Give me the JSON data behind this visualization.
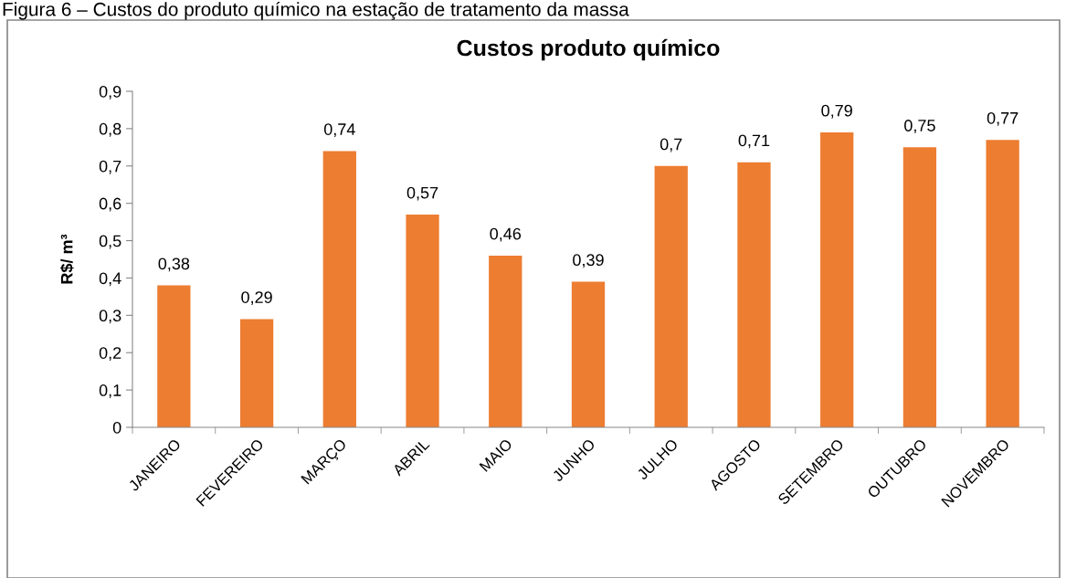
{
  "chart_data": {
    "type": "bar",
    "title": "Custos produto químico",
    "ylabel": "R$/ m³",
    "annotations": [
      "Figura 6 – Custos do produto químico na estação de tratamento da massa"
    ],
    "categories": [
      "JANEIRO",
      "FEVEREIRO",
      "MARÇO",
      "ABRIL",
      "MAIO",
      "JUNHO",
      "JULHO",
      "AGOSTO",
      "SETEMBRO",
      "OUTUBRO",
      "NOVEMBRO"
    ],
    "values": [
      0.38,
      0.29,
      0.74,
      0.57,
      0.46,
      0.39,
      0.7,
      0.71,
      0.79,
      0.75,
      0.77
    ],
    "value_labels": [
      "0,38",
      "0,29",
      "0,74",
      "0,57",
      "0,46",
      "0,39",
      "0,7",
      "0,71",
      "0,79",
      "0,75",
      "0,77"
    ],
    "color": "#ed7d31",
    "ylim": [
      0,
      0.9
    ],
    "yticks": [
      0,
      {
        "value": 0.1,
        "label": "0,1"
      },
      {
        "value": 0.2,
        "label": "0,2"
      },
      {
        "value": 0.3,
        "label": "0,3"
      },
      {
        "value": 0.4,
        "label": "0,4"
      },
      {
        "value": 0.5,
        "label": "0,5"
      },
      {
        "value": 0.6,
        "label": "0,6"
      },
      {
        "value": 0.7,
        "label": "0,7"
      },
      {
        "value": 0.8,
        "label": "0,8"
      },
      {
        "value": 0.9,
        "label": "0,9"
      }
    ],
    "grid": false,
    "legend": false
  }
}
